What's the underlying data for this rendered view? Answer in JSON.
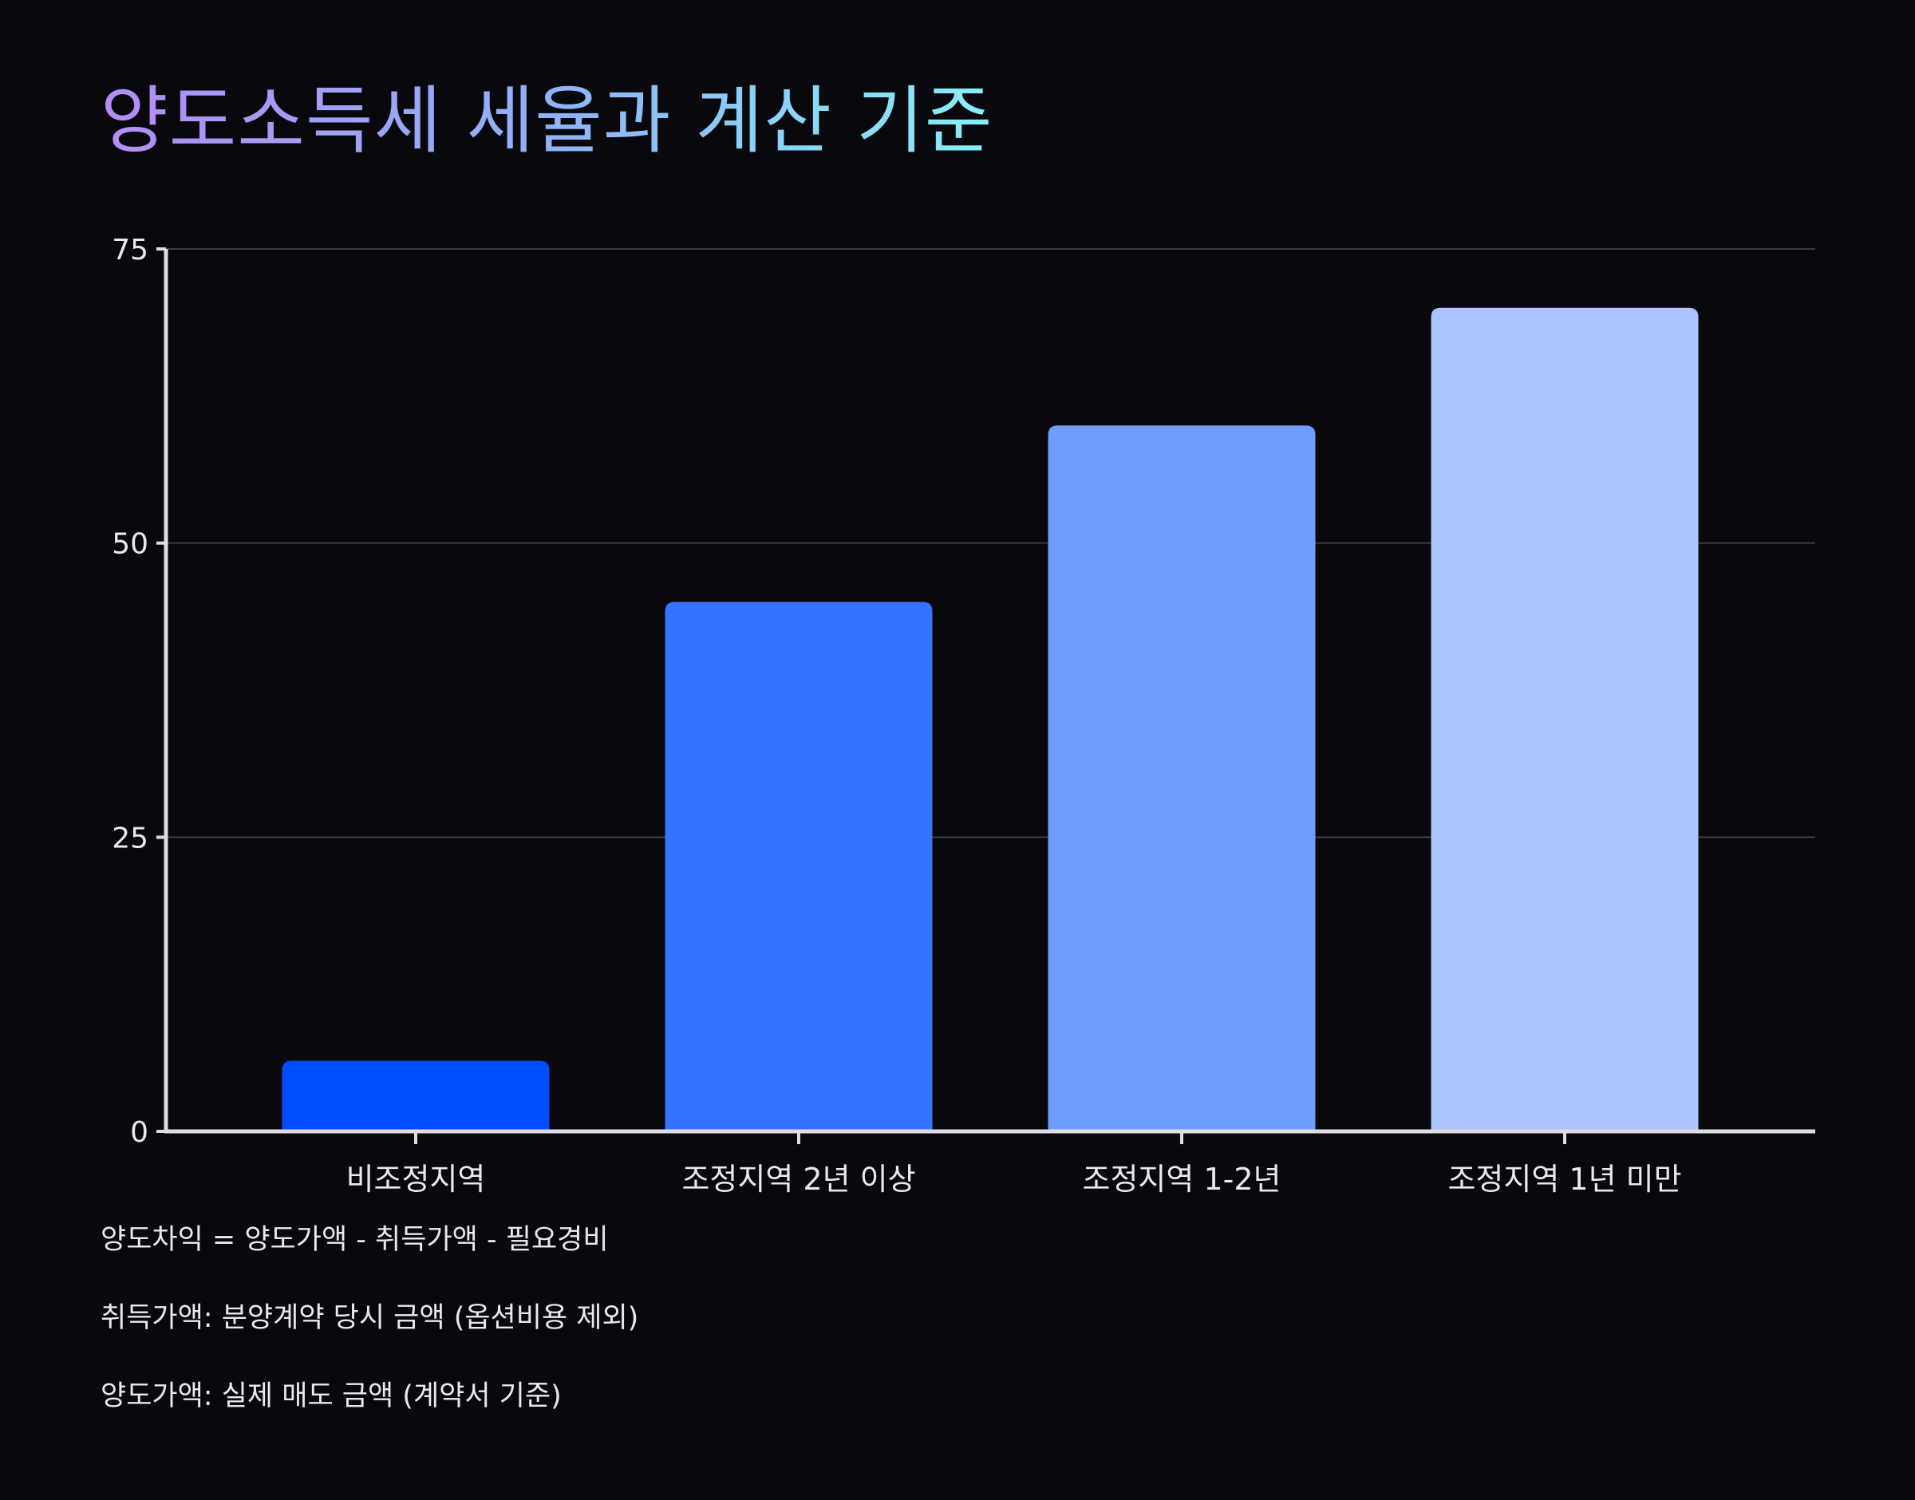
{
  "title": "양도소득세 세율과 계산 기준",
  "colors": {
    "background": "#08080d",
    "axis": "#e0dde0",
    "grid": "#3a3a42",
    "bars": [
      "#004cff",
      "#3473ff",
      "#6e9dff",
      "#aac4ff"
    ],
    "title_gradient": [
      "#b48cf5",
      "#8fb2f7",
      "#86f0f5"
    ]
  },
  "chart_data": {
    "type": "bar",
    "title": "",
    "xlabel": "",
    "ylabel": "",
    "categories": [
      "비조정지역",
      "조정지역 2년 이상",
      "조정지역 1-2년",
      "조정지역 1년 미만"
    ],
    "values": [
      6,
      45,
      60,
      70
    ],
    "ylim": [
      0,
      75
    ],
    "yticks": [
      0,
      25,
      50,
      75
    ],
    "grid": true,
    "legend": "none"
  },
  "notes": [
    "양도차익 = 양도가액 - 취득가액 - 필요경비",
    "취득가액: 분양계약 당시 금액 (옵션비용 제외)",
    "양도가액: 실제 매도 금액 (계약서 기준)"
  ]
}
